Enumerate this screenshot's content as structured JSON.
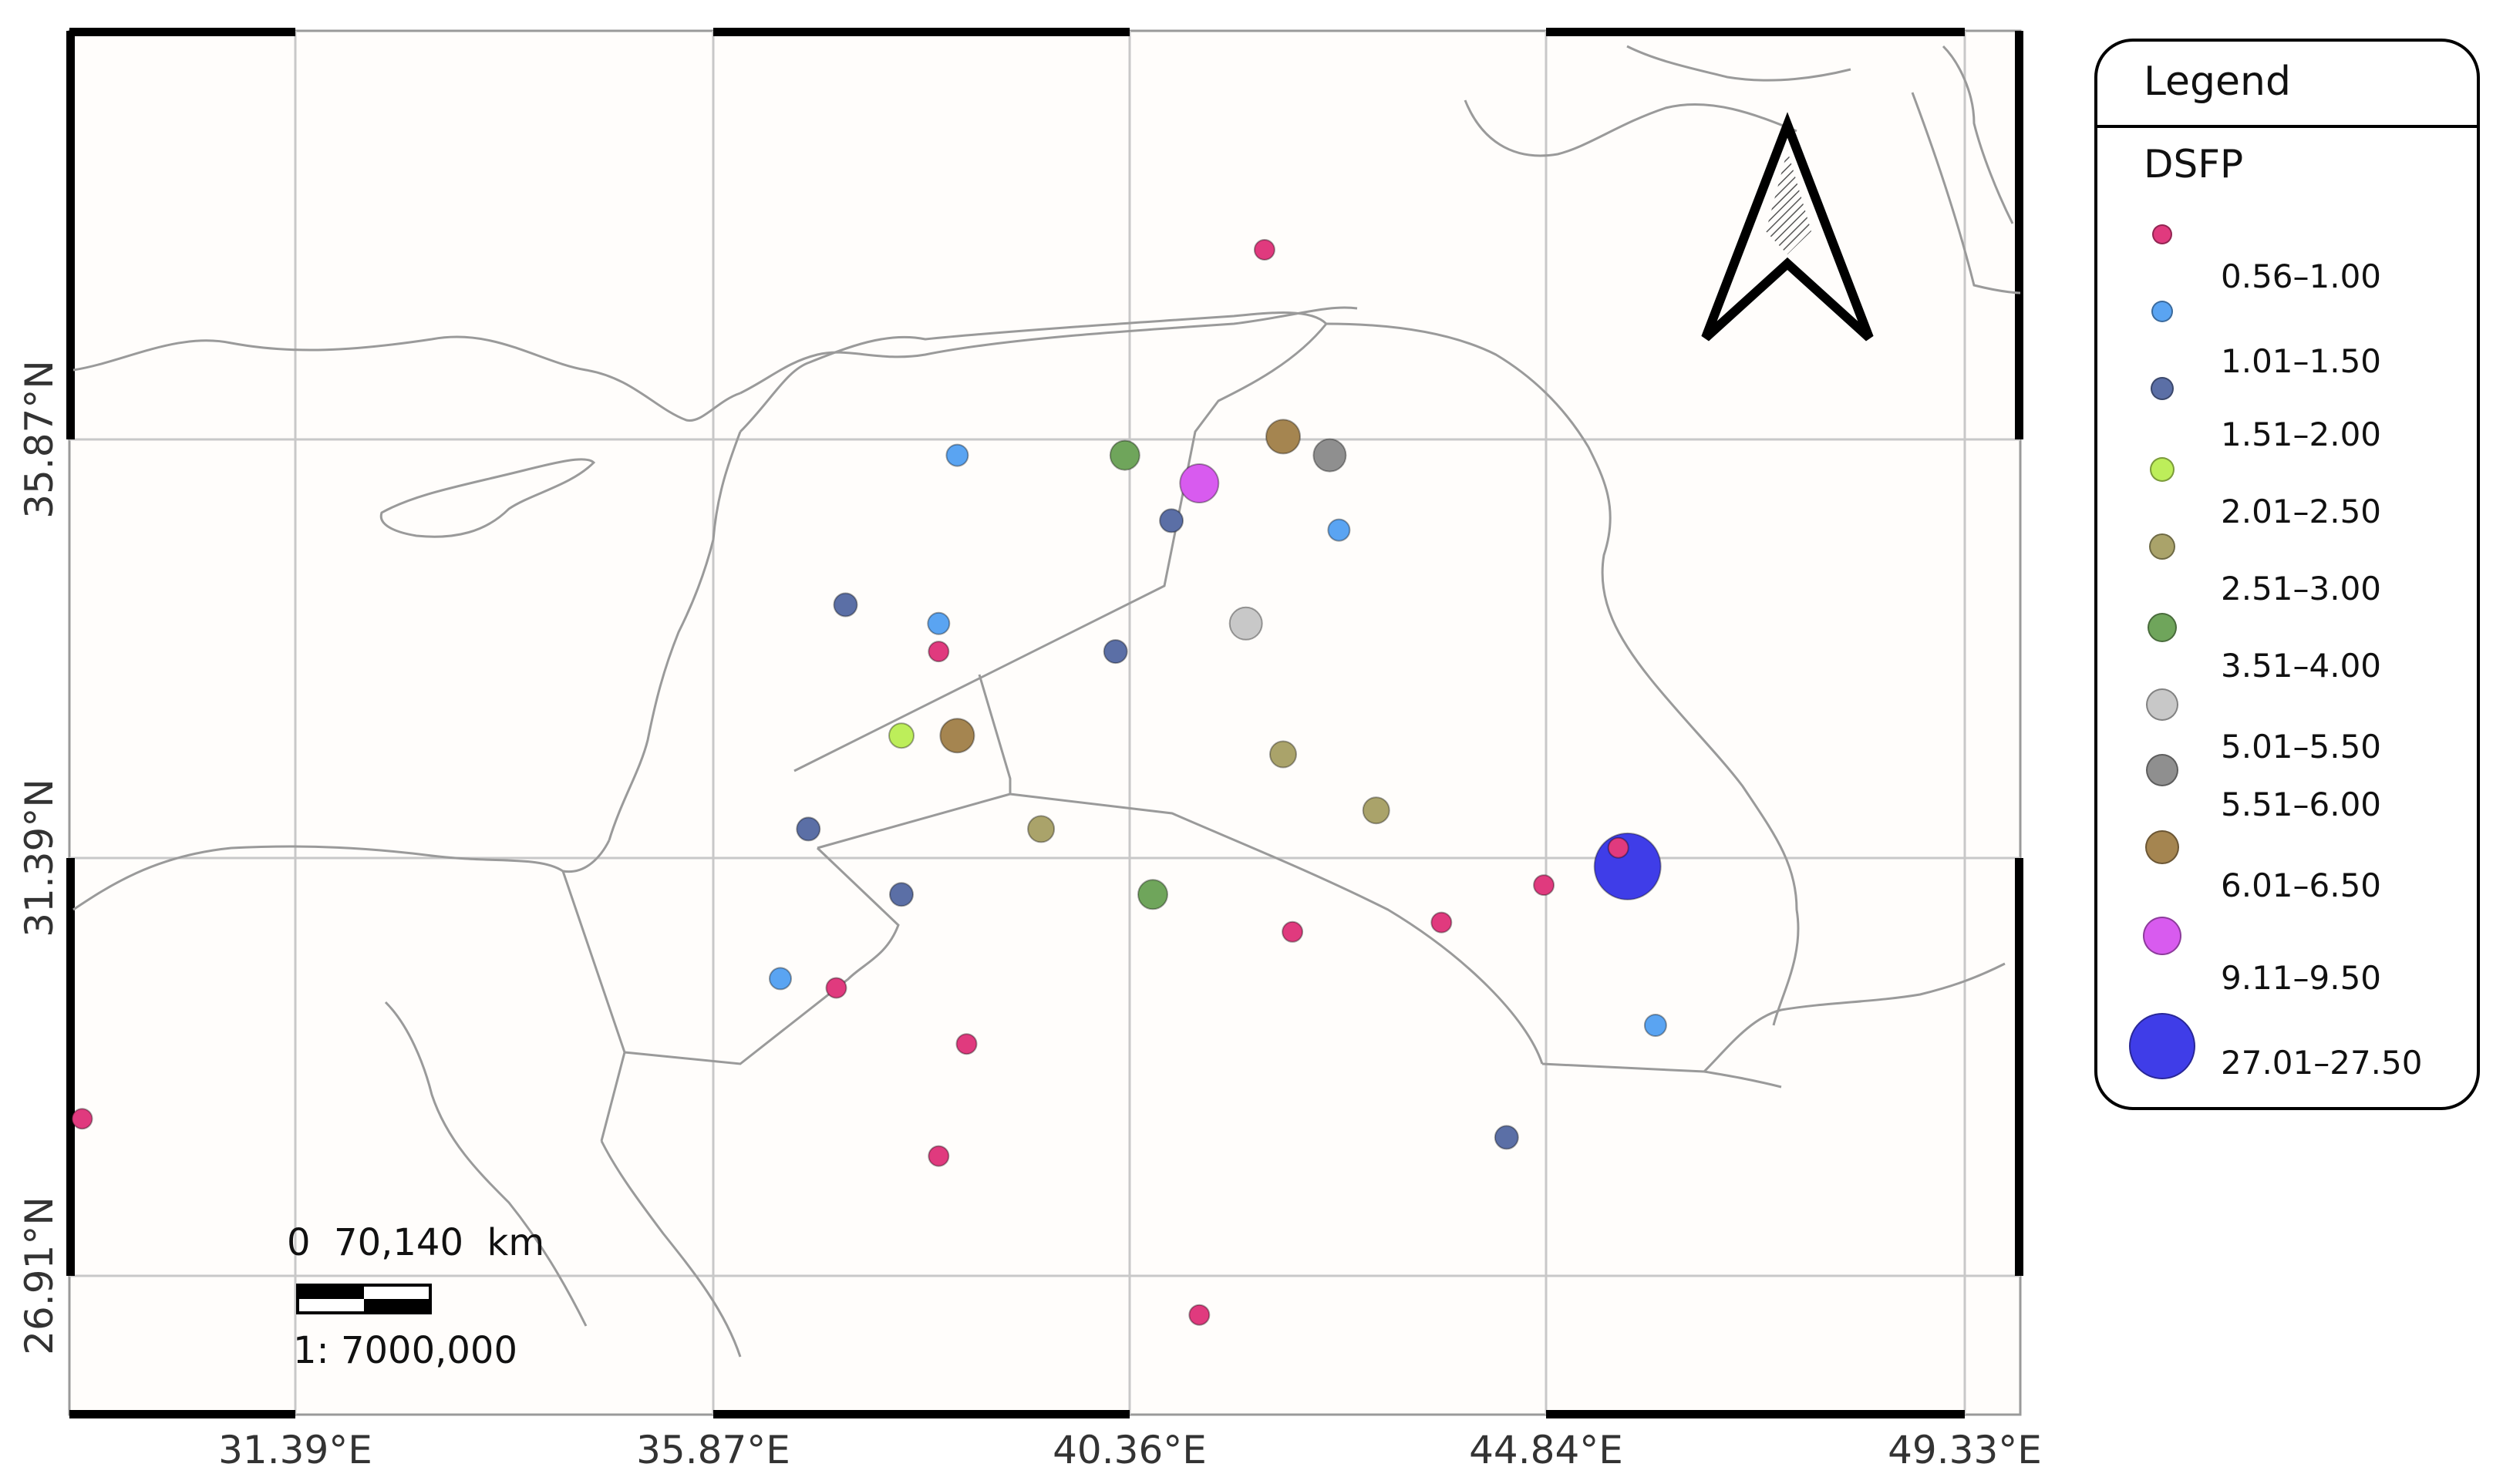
{
  "map": {
    "lon_labels": [
      "31.39°E",
      "35.87°E",
      "40.36°E",
      "44.84°E",
      "49.33°E"
    ],
    "lat_labels": [
      "35.87°N",
      "31.39°N",
      "26.91°N"
    ],
    "scale_bar": {
      "ticks": "0  70,140  km",
      "ratio": "1: 7000,000"
    },
    "north_arrow": "north-arrow-icon",
    "colors": {
      "background": "#fffdfb",
      "border": "#9a9a9a",
      "graticule": "#c8c8c8"
    }
  },
  "legend": {
    "title": "Legend",
    "layer": "DSFP",
    "classes": [
      {
        "label": "0.56–1.00",
        "color": "#e03a7e"
      },
      {
        "label": "1.01–1.50",
        "color": "#5aa4f2"
      },
      {
        "label": "1.51–2.00",
        "color": "#5b6fa6"
      },
      {
        "label": "2.01–2.50",
        "color": "#bdee5a"
      },
      {
        "label": "2.51–3.00",
        "color": "#aaa36a"
      },
      {
        "label": "3.51–4.00",
        "color": "#6fa55b"
      },
      {
        "label": "5.01–5.50",
        "color": "#c8c8c8"
      },
      {
        "label": "5.51–6.00",
        "color": "#8f8f8f"
      },
      {
        "label": "6.01–6.50",
        "color": "#a58550"
      },
      {
        "label": "9.11–9.50",
        "color": "#d85bef"
      },
      {
        "label": "27.01–27.50",
        "color": "#3f3de8"
      }
    ]
  },
  "points": [
    {
      "cls": 0,
      "lon": 41.8,
      "lat": 37.9
    },
    {
      "cls": 0,
      "lon": 38.3,
      "lat": 33.6
    },
    {
      "cls": 0,
      "lon": 37.2,
      "lat": 30.0
    },
    {
      "cls": 0,
      "lon": 38.6,
      "lat": 29.4
    },
    {
      "cls": 0,
      "lon": 38.3,
      "lat": 28.2
    },
    {
      "cls": 0,
      "lon": 29.1,
      "lat": 28.6
    },
    {
      "cls": 0,
      "lon": 41.1,
      "lat": 26.5
    },
    {
      "cls": 0,
      "lon": 42.1,
      "lat": 30.6
    },
    {
      "cls": 0,
      "lon": 43.7,
      "lat": 30.7
    },
    {
      "cls": 0,
      "lon": 44.8,
      "lat": 31.1
    },
    {
      "cls": 0,
      "lon": 45.6,
      "lat": 31.5
    },
    {
      "cls": 1,
      "lon": 38.5,
      "lat": 35.7
    },
    {
      "cls": 1,
      "lon": 38.3,
      "lat": 33.9
    },
    {
      "cls": 1,
      "lon": 42.6,
      "lat": 34.9
    },
    {
      "cls": 1,
      "lon": 36.6,
      "lat": 30.1
    },
    {
      "cls": 1,
      "lon": 46.0,
      "lat": 29.6
    },
    {
      "cls": 2,
      "lon": 40.8,
      "lat": 35.0
    },
    {
      "cls": 2,
      "lon": 37.3,
      "lat": 34.1
    },
    {
      "cls": 2,
      "lon": 40.2,
      "lat": 33.6
    },
    {
      "cls": 2,
      "lon": 36.9,
      "lat": 31.7
    },
    {
      "cls": 2,
      "lon": 37.9,
      "lat": 31.0
    },
    {
      "cls": 2,
      "lon": 44.4,
      "lat": 28.4
    },
    {
      "cls": 3,
      "lon": 37.9,
      "lat": 32.7
    },
    {
      "cls": 4,
      "lon": 42.0,
      "lat": 32.5
    },
    {
      "cls": 4,
      "lon": 39.4,
      "lat": 31.7
    },
    {
      "cls": 4,
      "lon": 43.0,
      "lat": 31.9
    },
    {
      "cls": 5,
      "lon": 40.3,
      "lat": 35.7
    },
    {
      "cls": 5,
      "lon": 40.6,
      "lat": 31.0
    },
    {
      "cls": 6,
      "lon": 41.6,
      "lat": 33.9
    },
    {
      "cls": 7,
      "lon": 42.5,
      "lat": 35.7
    },
    {
      "cls": 8,
      "lon": 42.0,
      "lat": 35.9
    },
    {
      "cls": 8,
      "lon": 38.5,
      "lat": 32.7
    },
    {
      "cls": 9,
      "lon": 41.1,
      "lat": 35.4
    },
    {
      "cls": 10,
      "lon": 45.7,
      "lat": 31.3
    }
  ]
}
